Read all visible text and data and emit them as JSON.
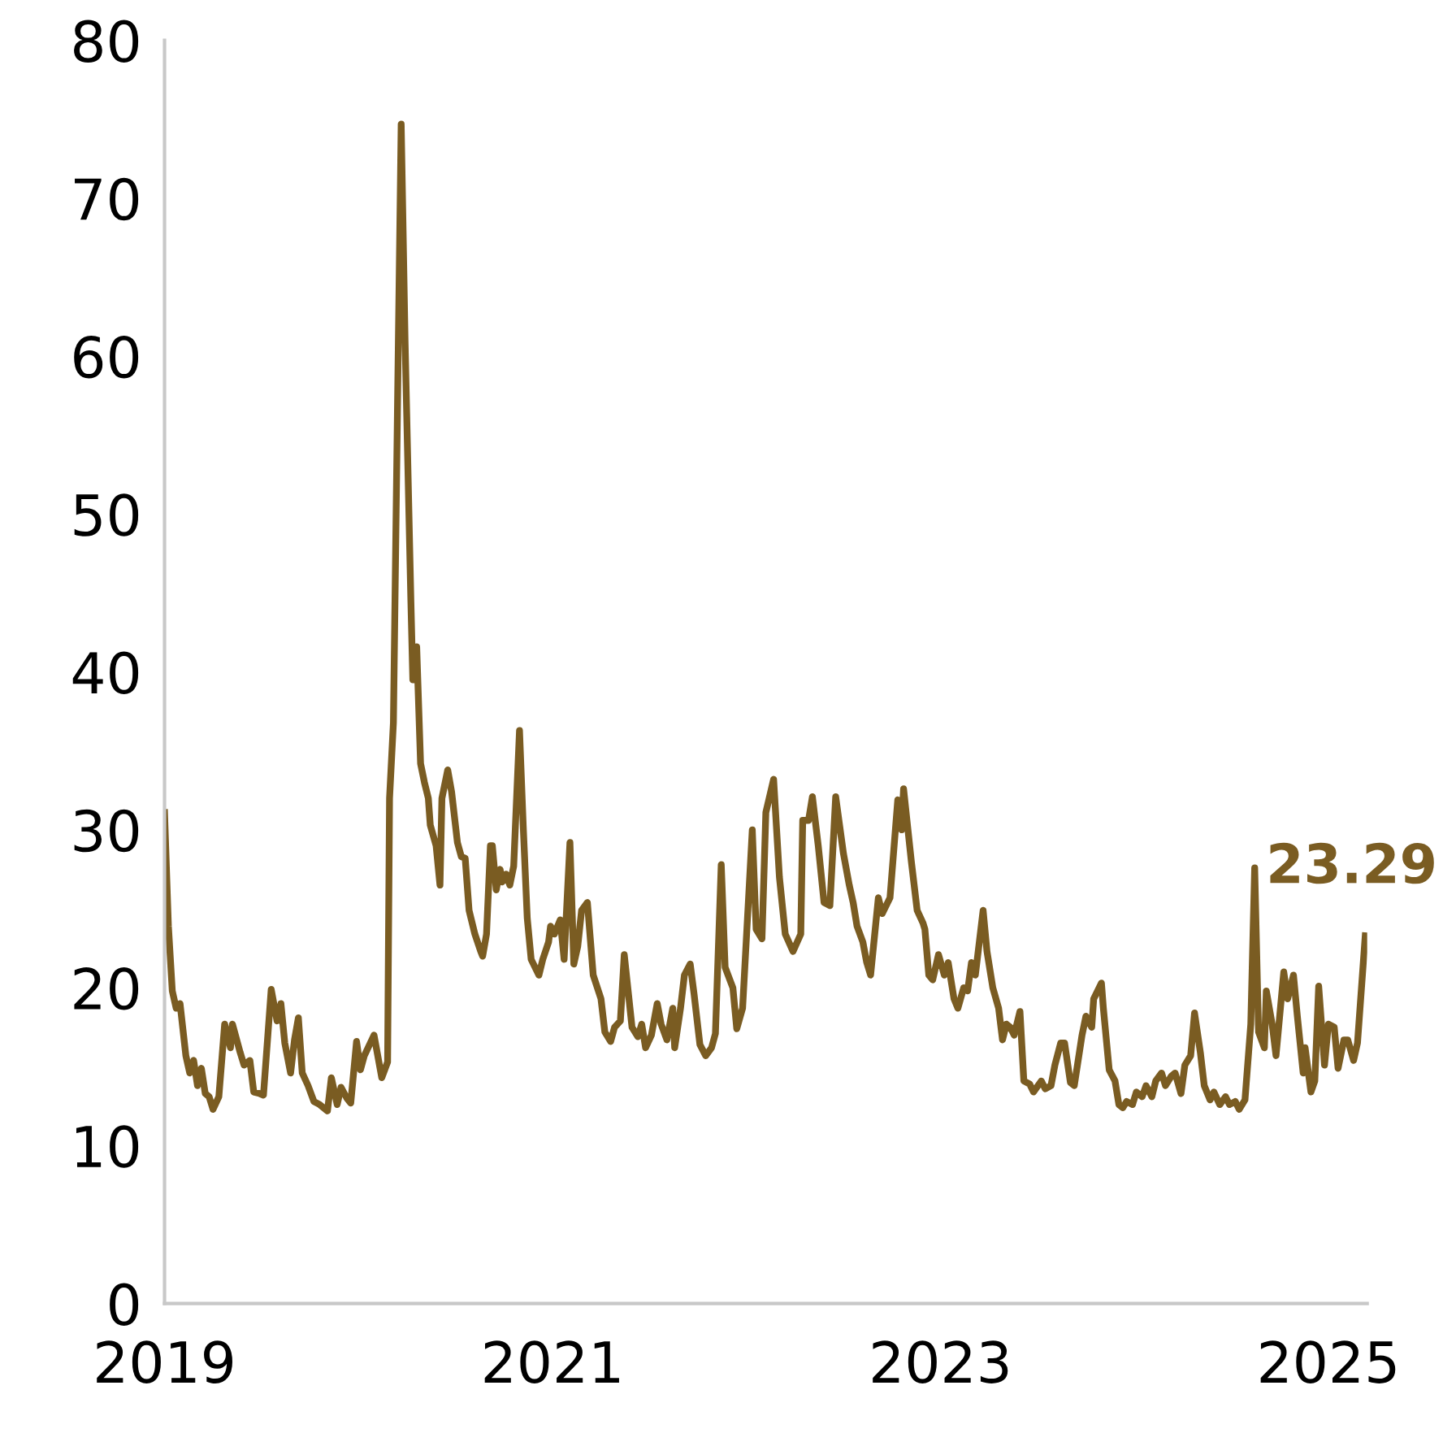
{
  "chart_data": {
    "type": "line",
    "color": "#7a5c22",
    "x": [
      2019.0,
      2019.02,
      2019.04,
      2019.06,
      2019.08,
      2019.11,
      2019.13,
      2019.15,
      2019.17,
      2019.19,
      2019.21,
      2019.23,
      2019.25,
      2019.28,
      2019.31,
      2019.34,
      2019.35,
      2019.39,
      2019.41,
      2019.44,
      2019.46,
      2019.49,
      2019.51,
      2019.55,
      2019.58,
      2019.6,
      2019.62,
      2019.65,
      2019.67,
      2019.69,
      2019.71,
      2019.74,
      2019.77,
      2019.8,
      2019.84,
      2019.86,
      2019.89,
      2019.91,
      2019.94,
      2019.96,
      2019.99,
      2020.01,
      2020.03,
      2020.08,
      2020.12,
      2020.15,
      2020.16,
      2020.18,
      2020.22,
      2020.24,
      2020.27,
      2020.28,
      2020.3,
      2020.32,
      2020.34,
      2020.36,
      2020.37,
      2020.4,
      2020.42,
      2020.43,
      2020.46,
      2020.48,
      2020.51,
      2020.53,
      2020.55,
      2020.57,
      2020.58,
      2020.6,
      2020.63,
      2020.64,
      2020.66,
      2020.68,
      2020.69,
      2020.71,
      2020.73,
      2020.74,
      2020.76,
      2020.78,
      2020.8,
      2020.83,
      2020.85,
      2020.87,
      2020.89,
      2020.93,
      2020.95,
      2020.98,
      2020.99,
      2021.01,
      2021.04,
      2021.06,
      2021.09,
      2021.11,
      2021.13,
      2021.15,
      2021.18,
      2021.21,
      2021.25,
      2021.27,
      2021.3,
      2021.32,
      2021.35,
      2021.37,
      2021.41,
      2021.44,
      2021.46,
      2021.48,
      2021.51,
      2021.54,
      2021.56,
      2021.59,
      2021.62,
      2021.63,
      2021.66,
      2021.68,
      2021.71,
      2021.73,
      2021.76,
      2021.79,
      2021.82,
      2021.84,
      2021.87,
      2021.89,
      2021.93,
      2021.95,
      2021.98,
      2022.03,
      2022.05,
      2022.08,
      2022.1,
      2022.14,
      2022.17,
      2022.2,
      2022.24,
      2022.28,
      2022.29,
      2022.32,
      2022.34,
      2022.37,
      2022.4,
      2022.43,
      2022.46,
      2022.5,
      2022.53,
      2022.55,
      2022.57,
      2022.6,
      2022.62,
      2022.64,
      2022.68,
      2022.7,
      2022.74,
      2022.76,
      2022.78,
      2022.8,
      2022.81,
      2022.85,
      2022.88,
      2022.91,
      2022.92,
      2022.94,
      2022.96,
      2022.99,
      2023.02,
      2023.04,
      2023.07,
      2023.09,
      2023.12,
      2023.14,
      2023.16,
      2023.18,
      2023.22,
      2023.24,
      2023.27,
      2023.3,
      2023.32,
      2023.34,
      2023.36,
      2023.38,
      2023.41,
      2023.43,
      2023.46,
      2023.48,
      2023.52,
      2023.54,
      2023.57,
      2023.59,
      2023.62,
      2023.64,
      2023.67,
      2023.69,
      2023.73,
      2023.75,
      2023.78,
      2023.79,
      2023.83,
      2023.84,
      2023.87,
      2023.9,
      2023.92,
      2023.94,
      2023.96,
      2023.99,
      2024.01,
      2024.04,
      2024.06,
      2024.09,
      2024.11,
      2024.14,
      2024.16,
      2024.19,
      2024.21,
      2024.24,
      2024.26,
      2024.29,
      2024.31,
      2024.34,
      2024.36,
      2024.39,
      2024.41,
      2024.44,
      2024.47,
      2024.49,
      2024.52,
      2024.54,
      2024.57,
      2024.6,
      2024.62,
      2024.64,
      2024.67,
      2024.68,
      2024.71,
      2024.73,
      2024.77,
      2024.79,
      2024.82,
      2024.84,
      2024.87,
      2024.88,
      2024.91,
      2024.93,
      2024.95,
      2024.98,
      2025.0,
      2025.03,
      2025.05,
      2025.08,
      2025.1,
      2025.13,
      2025.15,
      2025.19
    ],
    "values": [
      31.1,
      23.9,
      19.8,
      18.7,
      19,
      15.7,
      14.6,
      15.4,
      13.8,
      14.9,
      13.3,
      13.1,
      12.3,
      13.1,
      17.7,
      16.2,
      17.7,
      15.9,
      15.1,
      15.4,
      13.4,
      13.3,
      13.2,
      19.9,
      17.9,
      19,
      16.5,
      14.6,
      16.7,
      18.1,
      14.6,
      13.8,
      12.8,
      12.6,
      12.2,
      14.3,
      12.6,
      13.7,
      13,
      12.7,
      16.6,
      14.8,
      15.7,
      17,
      14.3,
      15.3,
      32,
      36.8,
      74.7,
      61,
      44.5,
      39.5,
      41.6,
      34.2,
      33,
      32,
      30.3,
      29,
      26.5,
      32,
      33.8,
      32.4,
      29.2,
      28.3,
      28.2,
      24.9,
      24.4,
      23.4,
      22.3,
      22,
      23.4,
      29,
      29,
      26.2,
      27.5,
      26.7,
      27.2,
      26.5,
      27.7,
      36.3,
      30,
      24.4,
      21.8,
      20.8,
      21.8,
      22.9,
      23.9,
      23.4,
      24.3,
      21.8,
      29.2,
      21.5,
      22.6,
      24.9,
      25.4,
      20.8,
      19.3,
      17.2,
      16.6,
      17.5,
      17.9,
      22.1,
      17.5,
      16.9,
      17.7,
      16.2,
      17,
      19,
      17.7,
      16.7,
      18.7,
      16.2,
      18.7,
      20.8,
      21.5,
      19.6,
      16.4,
      15.7,
      16.2,
      17.1,
      27.8,
      21.3,
      20,
      17.4,
      18.7,
      30,
      23.7,
      23.1,
      31.1,
      33.2,
      27,
      23.4,
      22.3,
      23.4,
      30.6,
      30.6,
      32.1,
      29,
      25.4,
      25.2,
      32.1,
      28.5,
      26.5,
      25.4,
      23.9,
      22.9,
      21.6,
      20.8,
      25.7,
      24.7,
      25.7,
      28.8,
      31.9,
      30,
      32.6,
      28,
      24.9,
      24.1,
      23.7,
      20.8,
      20.5,
      22.1,
      20.8,
      21.6,
      19.3,
      18.7,
      20,
      19.8,
      21.6,
      20.8,
      24.9,
      22.3,
      20,
      18.7,
      16.7,
      17.7,
      17.5,
      17,
      18.5,
      14.1,
      13.9,
      13.4,
      14.1,
      13.6,
      13.8,
      15.1,
      16.5,
      16.5,
      14,
      13.8,
      17,
      18.2,
      17.5,
      19.3,
      20.3,
      18.7,
      14.8,
      14.1,
      12.6,
      12.4,
      12.8,
      12.6,
      13.4,
      13.1,
      13.8,
      13.1,
      14.1,
      14.6,
      13.8,
      14.4,
      14.6,
      13.3,
      15.1,
      15.7,
      18.4,
      15.9,
      13.8,
      12.9,
      13.4,
      12.6,
      13.1,
      12.6,
      12.8,
      12.3,
      12.9,
      17.7,
      27.6,
      17.2,
      16.2,
      19.8,
      17.7,
      15.7,
      21,
      19.3,
      20.8,
      18.2,
      14.6,
      16.2,
      13.4,
      14.1,
      20.1,
      15.1,
      17.7,
      17.5,
      14.9,
      16.7,
      16.7,
      15.4,
      16.5,
      23.29
    ],
    "xlim": [
      2019,
      2025.2
    ],
    "xticks": [
      2019,
      2021,
      2023,
      2025
    ],
    "ylim": [
      0,
      80
    ],
    "yticks": [
      0,
      10,
      20,
      30,
      40,
      50,
      60,
      70,
      80
    ],
    "grid": false,
    "legend": false,
    "marker": "none",
    "line_style": "solid",
    "annotations": [
      {
        "text": "23.29",
        "x": 2025.19,
        "y": 23.29
      }
    ]
  }
}
